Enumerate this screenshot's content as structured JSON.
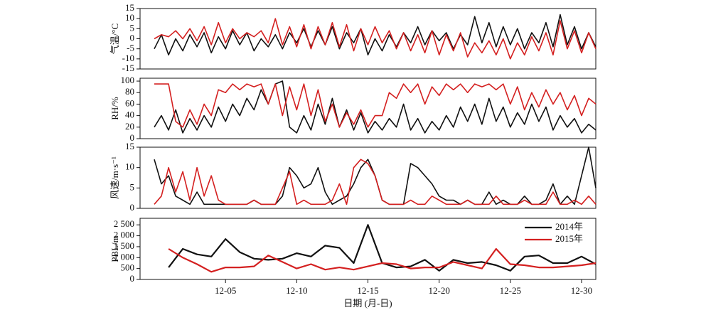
{
  "chart_data": [
    {
      "type": "line",
      "ylabel": "气温/°C",
      "x": [
        0,
        0.5,
        1,
        1.5,
        2,
        2.5,
        3,
        3.5,
        4,
        4.5,
        5,
        5.5,
        6,
        6.5,
        7,
        7.5,
        8,
        8.5,
        9,
        9.5,
        10,
        10.5,
        11,
        11.5,
        12,
        12.5,
        13,
        13.5,
        14,
        14.5,
        15,
        15.5,
        16,
        16.5,
        17,
        17.5,
        18,
        18.5,
        19,
        19.5,
        20,
        20.5,
        21,
        21.5,
        22,
        22.5,
        23,
        23.5,
        24,
        24.5,
        25,
        25.5,
        26,
        26.5,
        27,
        27.5,
        28,
        28.5,
        29,
        29.5,
        30,
        30.5,
        31
      ],
      "xlim": [
        -1,
        31
      ],
      "ylim": [
        -15,
        15
      ],
      "yticks": [
        -15,
        -10,
        -5,
        0,
        5,
        10,
        15
      ],
      "series": [
        {
          "color": "#111111",
          "values": [
            -5,
            2,
            -8,
            0,
            -6,
            2,
            -4,
            3,
            -7,
            1,
            -5,
            4,
            -3,
            3,
            -6,
            0,
            -4,
            2,
            -5,
            3,
            -2,
            5,
            -4,
            4,
            -3,
            6,
            -5,
            3,
            -2,
            5,
            -8,
            0,
            -6,
            2,
            -4,
            3,
            -2,
            6,
            -3,
            4,
            -1,
            3,
            -5,
            2,
            -3,
            11,
            -2,
            8,
            -4,
            6,
            -3,
            5,
            -5,
            3,
            -2,
            8,
            -4,
            12,
            -3,
            6,
            -5,
            3,
            -4
          ]
        },
        {
          "color": "#d42020",
          "values": [
            0,
            2,
            1,
            4,
            0,
            5,
            -1,
            6,
            -3,
            8,
            -2,
            5,
            0,
            3,
            1,
            4,
            -2,
            10,
            -3,
            6,
            -4,
            7,
            -5,
            6,
            -3,
            8,
            -4,
            7,
            -6,
            5,
            -3,
            6,
            -2,
            4,
            -5,
            3,
            -6,
            2,
            -7,
            4,
            -8,
            2,
            -6,
            3,
            -9,
            -2,
            -7,
            -1,
            -8,
            0,
            -10,
            -2,
            -8,
            1,
            -6,
            3,
            -8,
            9,
            -5,
            4,
            -7,
            3,
            -5
          ]
        }
      ]
    },
    {
      "type": "line",
      "ylabel": "RH/%",
      "x": [
        0,
        0.5,
        1,
        1.5,
        2,
        2.5,
        3,
        3.5,
        4,
        4.5,
        5,
        5.5,
        6,
        6.5,
        7,
        7.5,
        8,
        8.5,
        9,
        9.5,
        10,
        10.5,
        11,
        11.5,
        12,
        12.5,
        13,
        13.5,
        14,
        14.5,
        15,
        15.5,
        16,
        16.5,
        17,
        17.5,
        18,
        18.5,
        19,
        19.5,
        20,
        20.5,
        21,
        21.5,
        22,
        22.5,
        23,
        23.5,
        24,
        24.5,
        25,
        25.5,
        26,
        26.5,
        27,
        27.5,
        28,
        28.5,
        29,
        29.5,
        30,
        30.5,
        31
      ],
      "xlim": [
        -1,
        31
      ],
      "ylim": [
        0,
        105
      ],
      "yticks": [
        0,
        20,
        40,
        60,
        80,
        100
      ],
      "series": [
        {
          "color": "#111111",
          "values": [
            20,
            40,
            15,
            50,
            10,
            35,
            15,
            40,
            20,
            55,
            30,
            60,
            40,
            70,
            50,
            85,
            60,
            95,
            100,
            20,
            10,
            40,
            15,
            60,
            25,
            70,
            20,
            50,
            15,
            45,
            10,
            30,
            15,
            35,
            20,
            60,
            15,
            35,
            10,
            30,
            15,
            40,
            20,
            55,
            30,
            60,
            25,
            70,
            30,
            55,
            20,
            45,
            25,
            60,
            30,
            55,
            15,
            40,
            20,
            35,
            10,
            25,
            15
          ]
        },
        {
          "color": "#d42020",
          "values": [
            95,
            95,
            95,
            30,
            20,
            50,
            25,
            60,
            40,
            85,
            80,
            95,
            85,
            95,
            90,
            95,
            60,
            95,
            40,
            90,
            50,
            95,
            40,
            85,
            30,
            60,
            20,
            45,
            25,
            50,
            20,
            40,
            40,
            80,
            70,
            95,
            80,
            95,
            60,
            90,
            75,
            95,
            85,
            95,
            80,
            95,
            90,
            95,
            85,
            95,
            60,
            90,
            50,
            80,
            55,
            85,
            60,
            80,
            50,
            75,
            40,
            70,
            60
          ]
        }
      ]
    },
    {
      "type": "line",
      "ylabel": "风速/m·s⁻¹",
      "x": [
        0,
        0.5,
        1,
        1.5,
        2,
        2.5,
        3,
        3.5,
        4,
        4.5,
        5,
        5.5,
        6,
        6.5,
        7,
        7.5,
        8,
        8.5,
        9,
        9.5,
        10,
        10.5,
        11,
        11.5,
        12,
        12.5,
        13,
        13.5,
        14,
        14.5,
        15,
        15.5,
        16,
        16.5,
        17,
        17.5,
        18,
        18.5,
        19,
        19.5,
        20,
        20.5,
        21,
        21.5,
        22,
        22.5,
        23,
        23.5,
        24,
        24.5,
        25,
        25.5,
        26,
        26.5,
        27,
        27.5,
        28,
        28.5,
        29,
        29.5,
        30,
        30.5,
        31
      ],
      "xlim": [
        -1,
        31
      ],
      "ylim": [
        0,
        15
      ],
      "yticks": [
        0,
        5,
        10,
        15
      ],
      "series": [
        {
          "color": "#111111",
          "values": [
            12,
            6,
            8,
            3,
            2,
            1,
            4,
            1,
            1,
            1,
            1,
            1,
            1,
            1,
            2,
            1,
            1,
            1,
            3,
            10,
            8,
            5,
            6,
            10,
            4,
            1,
            2,
            3,
            6,
            10,
            12,
            8,
            2,
            1,
            1,
            1,
            11,
            10,
            8,
            6,
            3,
            2,
            2,
            1,
            2,
            1,
            1,
            4,
            1,
            2,
            1,
            1,
            3,
            1,
            1,
            2,
            6,
            1,
            3,
            1,
            8,
            15,
            5
          ]
        },
        {
          "color": "#d42020",
          "values": [
            1,
            3,
            10,
            4,
            9,
            2,
            10,
            3,
            8,
            2,
            1,
            1,
            1,
            1,
            2,
            1,
            1,
            1,
            5,
            9,
            1,
            2,
            1,
            1,
            1,
            2,
            6,
            1,
            10,
            12,
            11,
            8,
            2,
            1,
            1,
            1,
            2,
            1,
            1,
            3,
            2,
            1,
            1,
            1,
            2,
            1,
            1,
            1,
            3,
            1,
            1,
            1,
            2,
            1,
            1,
            1,
            4,
            1,
            1,
            2,
            1,
            3,
            1
          ]
        }
      ]
    },
    {
      "type": "line",
      "ylabel": "PBL/m",
      "xlabel": "日期 (月-日)",
      "x": [
        1,
        2,
        3,
        4,
        5,
        6,
        7,
        8,
        9,
        10,
        11,
        12,
        13,
        14,
        15,
        16,
        17,
        18,
        19,
        20,
        21,
        22,
        23,
        24,
        25,
        26,
        27,
        28,
        29,
        30,
        31
      ],
      "xlim": [
        -1,
        31
      ],
      "ylim": [
        0,
        2800
      ],
      "xticks": [
        {
          "value": 5,
          "label": "12-05"
        },
        {
          "value": 10,
          "label": "12-10"
        },
        {
          "value": 15,
          "label": "12-15"
        },
        {
          "value": 20,
          "label": "12-20"
        },
        {
          "value": 25,
          "label": "12-25"
        },
        {
          "value": 30,
          "label": "12-30"
        }
      ],
      "yticks": [
        0,
        500,
        {
          "value": 1000,
          "label": "1 000"
        },
        {
          "value": 1500,
          "label": "1 500"
        },
        {
          "value": 2000,
          "label": "2 000"
        },
        {
          "value": 2500,
          "label": "2 500"
        }
      ],
      "legend": "upper right",
      "series": [
        {
          "name": "2014年",
          "color": "#111111",
          "values": [
            550,
            1400,
            1150,
            1050,
            1850,
            1250,
            950,
            900,
            950,
            1200,
            1050,
            1550,
            1450,
            750,
            2500,
            750,
            550,
            600,
            900,
            400,
            900,
            750,
            800,
            650,
            400,
            1050,
            1100,
            750,
            750,
            1050,
            700
          ]
        },
        {
          "name": "2015年",
          "color": "#d42020",
          "values": [
            1400,
            1000,
            700,
            350,
            550,
            550,
            600,
            1100,
            800,
            500,
            700,
            450,
            550,
            450,
            600,
            750,
            700,
            500,
            550,
            550,
            800,
            650,
            500,
            1400,
            700,
            650,
            550,
            550,
            600,
            650,
            750
          ]
        }
      ]
    }
  ]
}
